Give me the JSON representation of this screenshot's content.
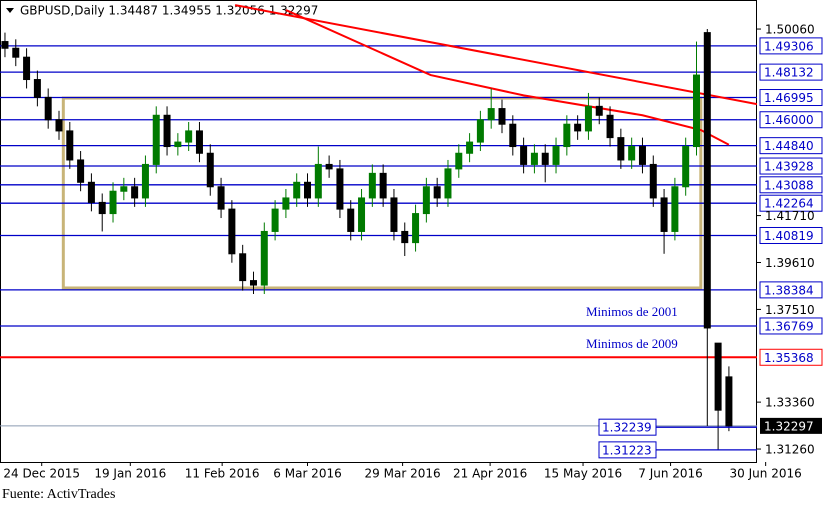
{
  "chart_data": {
    "type": "candlestick",
    "header": "GBPUSD,Daily  1.34487 1.34955 1.32056 1.32297",
    "source": "Fuente: ActivTrades",
    "annotations": [
      "Minimos de 2001",
      "Minimos de 2009"
    ],
    "colors": {
      "up": "#007a00",
      "down": "#000000"
    },
    "x": [
      0,
      1,
      2,
      3,
      4,
      5,
      6,
      7,
      8,
      9,
      10,
      11,
      12,
      13,
      14,
      15,
      16,
      17,
      18,
      19,
      20,
      21,
      22,
      23,
      24,
      25,
      26,
      27,
      28,
      29,
      30,
      31,
      32,
      33,
      34,
      35,
      36,
      37,
      38,
      39,
      40,
      41,
      42,
      43,
      44,
      45,
      46,
      47,
      48,
      49,
      50,
      51,
      52,
      53,
      54,
      55,
      56,
      57,
      58,
      59,
      60,
      61,
      62,
      63,
      64,
      65,
      66,
      67
    ],
    "open": [
      1.495,
      1.492,
      1.488,
      1.478,
      1.47,
      1.46,
      1.455,
      1.442,
      1.432,
      1.423,
      1.418,
      1.428,
      1.43,
      1.425,
      1.44,
      1.462,
      1.448,
      1.45,
      1.455,
      1.445,
      1.43,
      1.42,
      1.4,
      1.388,
      1.386,
      1.41,
      1.42,
      1.425,
      1.432,
      1.425,
      1.44,
      1.438,
      1.42,
      1.41,
      1.425,
      1.436,
      1.425,
      1.41,
      1.405,
      1.418,
      1.43,
      1.425,
      1.438,
      1.445,
      1.45,
      1.46,
      1.465,
      1.458,
      1.448,
      1.44,
      1.445,
      1.44,
      1.448,
      1.458,
      1.455,
      1.466,
      1.462,
      1.452,
      1.442,
      1.448,
      1.44,
      1.425,
      1.41,
      1.43,
      1.448,
      1.499,
      1.36,
      1.3449
    ],
    "high": [
      1.499,
      1.496,
      1.492,
      1.482,
      1.474,
      1.464,
      1.459,
      1.446,
      1.436,
      1.427,
      1.432,
      1.434,
      1.434,
      1.444,
      1.466,
      1.466,
      1.454,
      1.459,
      1.459,
      1.449,
      1.434,
      1.424,
      1.404,
      1.392,
      1.414,
      1.424,
      1.429,
      1.436,
      1.436,
      1.448,
      1.444,
      1.442,
      1.424,
      1.429,
      1.44,
      1.44,
      1.429,
      1.414,
      1.422,
      1.434,
      1.434,
      1.442,
      1.449,
      1.454,
      1.464,
      1.474,
      1.469,
      1.462,
      1.452,
      1.449,
      1.449,
      1.452,
      1.462,
      1.462,
      1.472,
      1.47,
      1.466,
      1.456,
      1.452,
      1.452,
      1.444,
      1.429,
      1.434,
      1.452,
      1.495,
      1.5006,
      1.358,
      1.3496
    ],
    "low": [
      1.488,
      1.484,
      1.474,
      1.466,
      1.456,
      1.451,
      1.438,
      1.428,
      1.419,
      1.41,
      1.414,
      1.424,
      1.421,
      1.421,
      1.436,
      1.444,
      1.444,
      1.446,
      1.441,
      1.426,
      1.416,
      1.396,
      1.3835,
      1.382,
      1.382,
      1.406,
      1.416,
      1.421,
      1.421,
      1.421,
      1.434,
      1.416,
      1.406,
      1.406,
      1.421,
      1.421,
      1.406,
      1.399,
      1.401,
      1.414,
      1.421,
      1.421,
      1.434,
      1.441,
      1.446,
      1.456,
      1.454,
      1.444,
      1.436,
      1.436,
      1.432,
      1.436,
      1.444,
      1.451,
      1.451,
      1.458,
      1.448,
      1.438,
      1.438,
      1.436,
      1.421,
      1.4,
      1.406,
      1.426,
      1.444,
      1.3229,
      1.3122,
      1.3206
    ],
    "close": [
      1.492,
      1.488,
      1.478,
      1.47,
      1.46,
      1.455,
      1.442,
      1.432,
      1.423,
      1.418,
      1.428,
      1.43,
      1.425,
      1.44,
      1.462,
      1.448,
      1.45,
      1.455,
      1.445,
      1.43,
      1.42,
      1.4,
      1.388,
      1.386,
      1.41,
      1.42,
      1.425,
      1.432,
      1.425,
      1.44,
      1.438,
      1.42,
      1.41,
      1.425,
      1.436,
      1.425,
      1.41,
      1.405,
      1.418,
      1.43,
      1.425,
      1.438,
      1.445,
      1.45,
      1.46,
      1.465,
      1.458,
      1.448,
      1.44,
      1.445,
      1.44,
      1.448,
      1.458,
      1.455,
      1.466,
      1.462,
      1.452,
      1.442,
      1.448,
      1.44,
      1.425,
      1.41,
      1.43,
      1.448,
      1.48,
      1.3668,
      1.33,
      1.323
    ],
    "xlim": [
      -0.46,
      69.6
    ],
    "ylim": [
      1.3068,
      1.5136
    ],
    "xticks": [
      {
        "value": 3.4,
        "label": "24 Dec 2015"
      },
      {
        "value": 11.6,
        "label": "19 Jan 2016"
      },
      {
        "value": 20.1,
        "label": "11 Feb 2016"
      },
      {
        "value": 28,
        "label": "6 Mar 2016"
      },
      {
        "value": 36.8,
        "label": "29 Mar 2016"
      },
      {
        "value": 44.9,
        "label": "21 Apr 2016"
      },
      {
        "value": 53.5,
        "label": "15 May 2016"
      },
      {
        "value": 61.6,
        "label": "7 Jun 2016"
      },
      {
        "value": 70.4,
        "label": "30 Jun 2016"
      }
    ],
    "yticks": [
      {
        "value": 1.5006,
        "label": "1.50060"
      },
      {
        "value": 1.4171,
        "label": "1.41710"
      },
      {
        "value": 1.3961,
        "label": "1.39610"
      },
      {
        "value": 1.3751,
        "label": "1.37510"
      },
      {
        "value": 1.3336,
        "label": "1.33360"
      },
      {
        "value": 1.3126,
        "label": "1.31260"
      }
    ],
    "levels": [
      {
        "value": 1.49306,
        "label": "1.49306",
        "color": "#0000c8"
      },
      {
        "value": 1.48132,
        "label": "1.48132",
        "color": "#0000c8"
      },
      {
        "value": 1.46995,
        "label": "1.46995",
        "color": "#0000c8"
      },
      {
        "value": 1.46,
        "label": "1.46000",
        "color": "#0000c8"
      },
      {
        "value": 1.4484,
        "label": "1.44840",
        "color": "#0000c8"
      },
      {
        "value": 1.43928,
        "label": "1.43928",
        "color": "#0000c8"
      },
      {
        "value": 1.43088,
        "label": "1.43088",
        "color": "#0000c8"
      },
      {
        "value": 1.42264,
        "label": "1.42264",
        "color": "#0000c8"
      },
      {
        "value": 1.40819,
        "label": "1.40819",
        "color": "#0000c8"
      },
      {
        "value": 1.38384,
        "label": "1.38384",
        "color": "#0000c8"
      },
      {
        "value": 1.36769,
        "label": "1.36769",
        "color": "#0000c8"
      },
      {
        "value": 1.35368,
        "label": "1.35368",
        "color": "#ff0000"
      }
    ],
    "current": {
      "value": 1.32297,
      "label": "1.32297"
    },
    "left_levels": [
      {
        "value": 1.32239,
        "label": "1.32239"
      },
      {
        "value": 1.31223,
        "label": "1.31223"
      }
    ],
    "rectangle": {
      "x": [
        5.4,
        64.4
      ],
      "y": [
        1.4697,
        1.3847
      ],
      "color": "#c8b478"
    },
    "trend_lines": [
      {
        "color": "#ff0000",
        "x": [
          21.3,
          69.6
        ],
        "y": [
          1.5113,
          1.467
        ]
      },
      {
        "color": "#ff0000",
        "x": [
          26,
          39.4,
          48,
          59,
          64.4,
          67
        ],
        "y": [
          1.5091,
          1.48,
          1.4709,
          1.462,
          1.4554,
          1.4488
        ]
      }
    ]
  }
}
